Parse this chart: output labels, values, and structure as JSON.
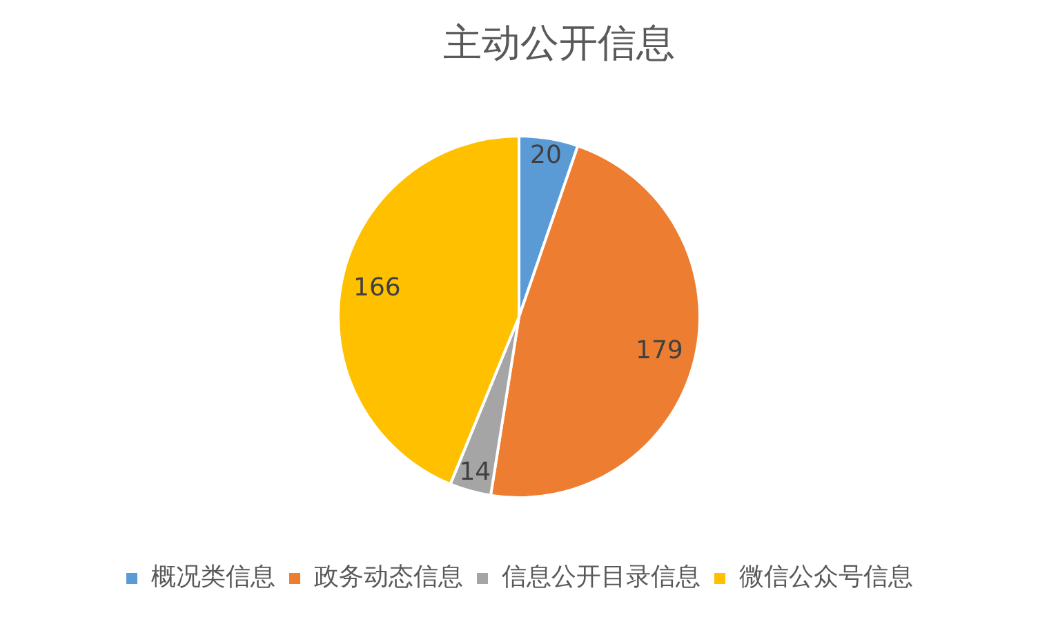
{
  "chart_data": {
    "type": "pie",
    "title": "主动公开信息",
    "categories": [
      "概况类信息",
      "政务动态信息",
      "信息公开目录信息",
      "微信公众号信息"
    ],
    "values": [
      20,
      179,
      14,
      166
    ],
    "colors": [
      "#5b9bd5",
      "#ed7d31",
      "#a5a5a5",
      "#ffc000"
    ],
    "data_labels": true,
    "legend": "bottom"
  }
}
